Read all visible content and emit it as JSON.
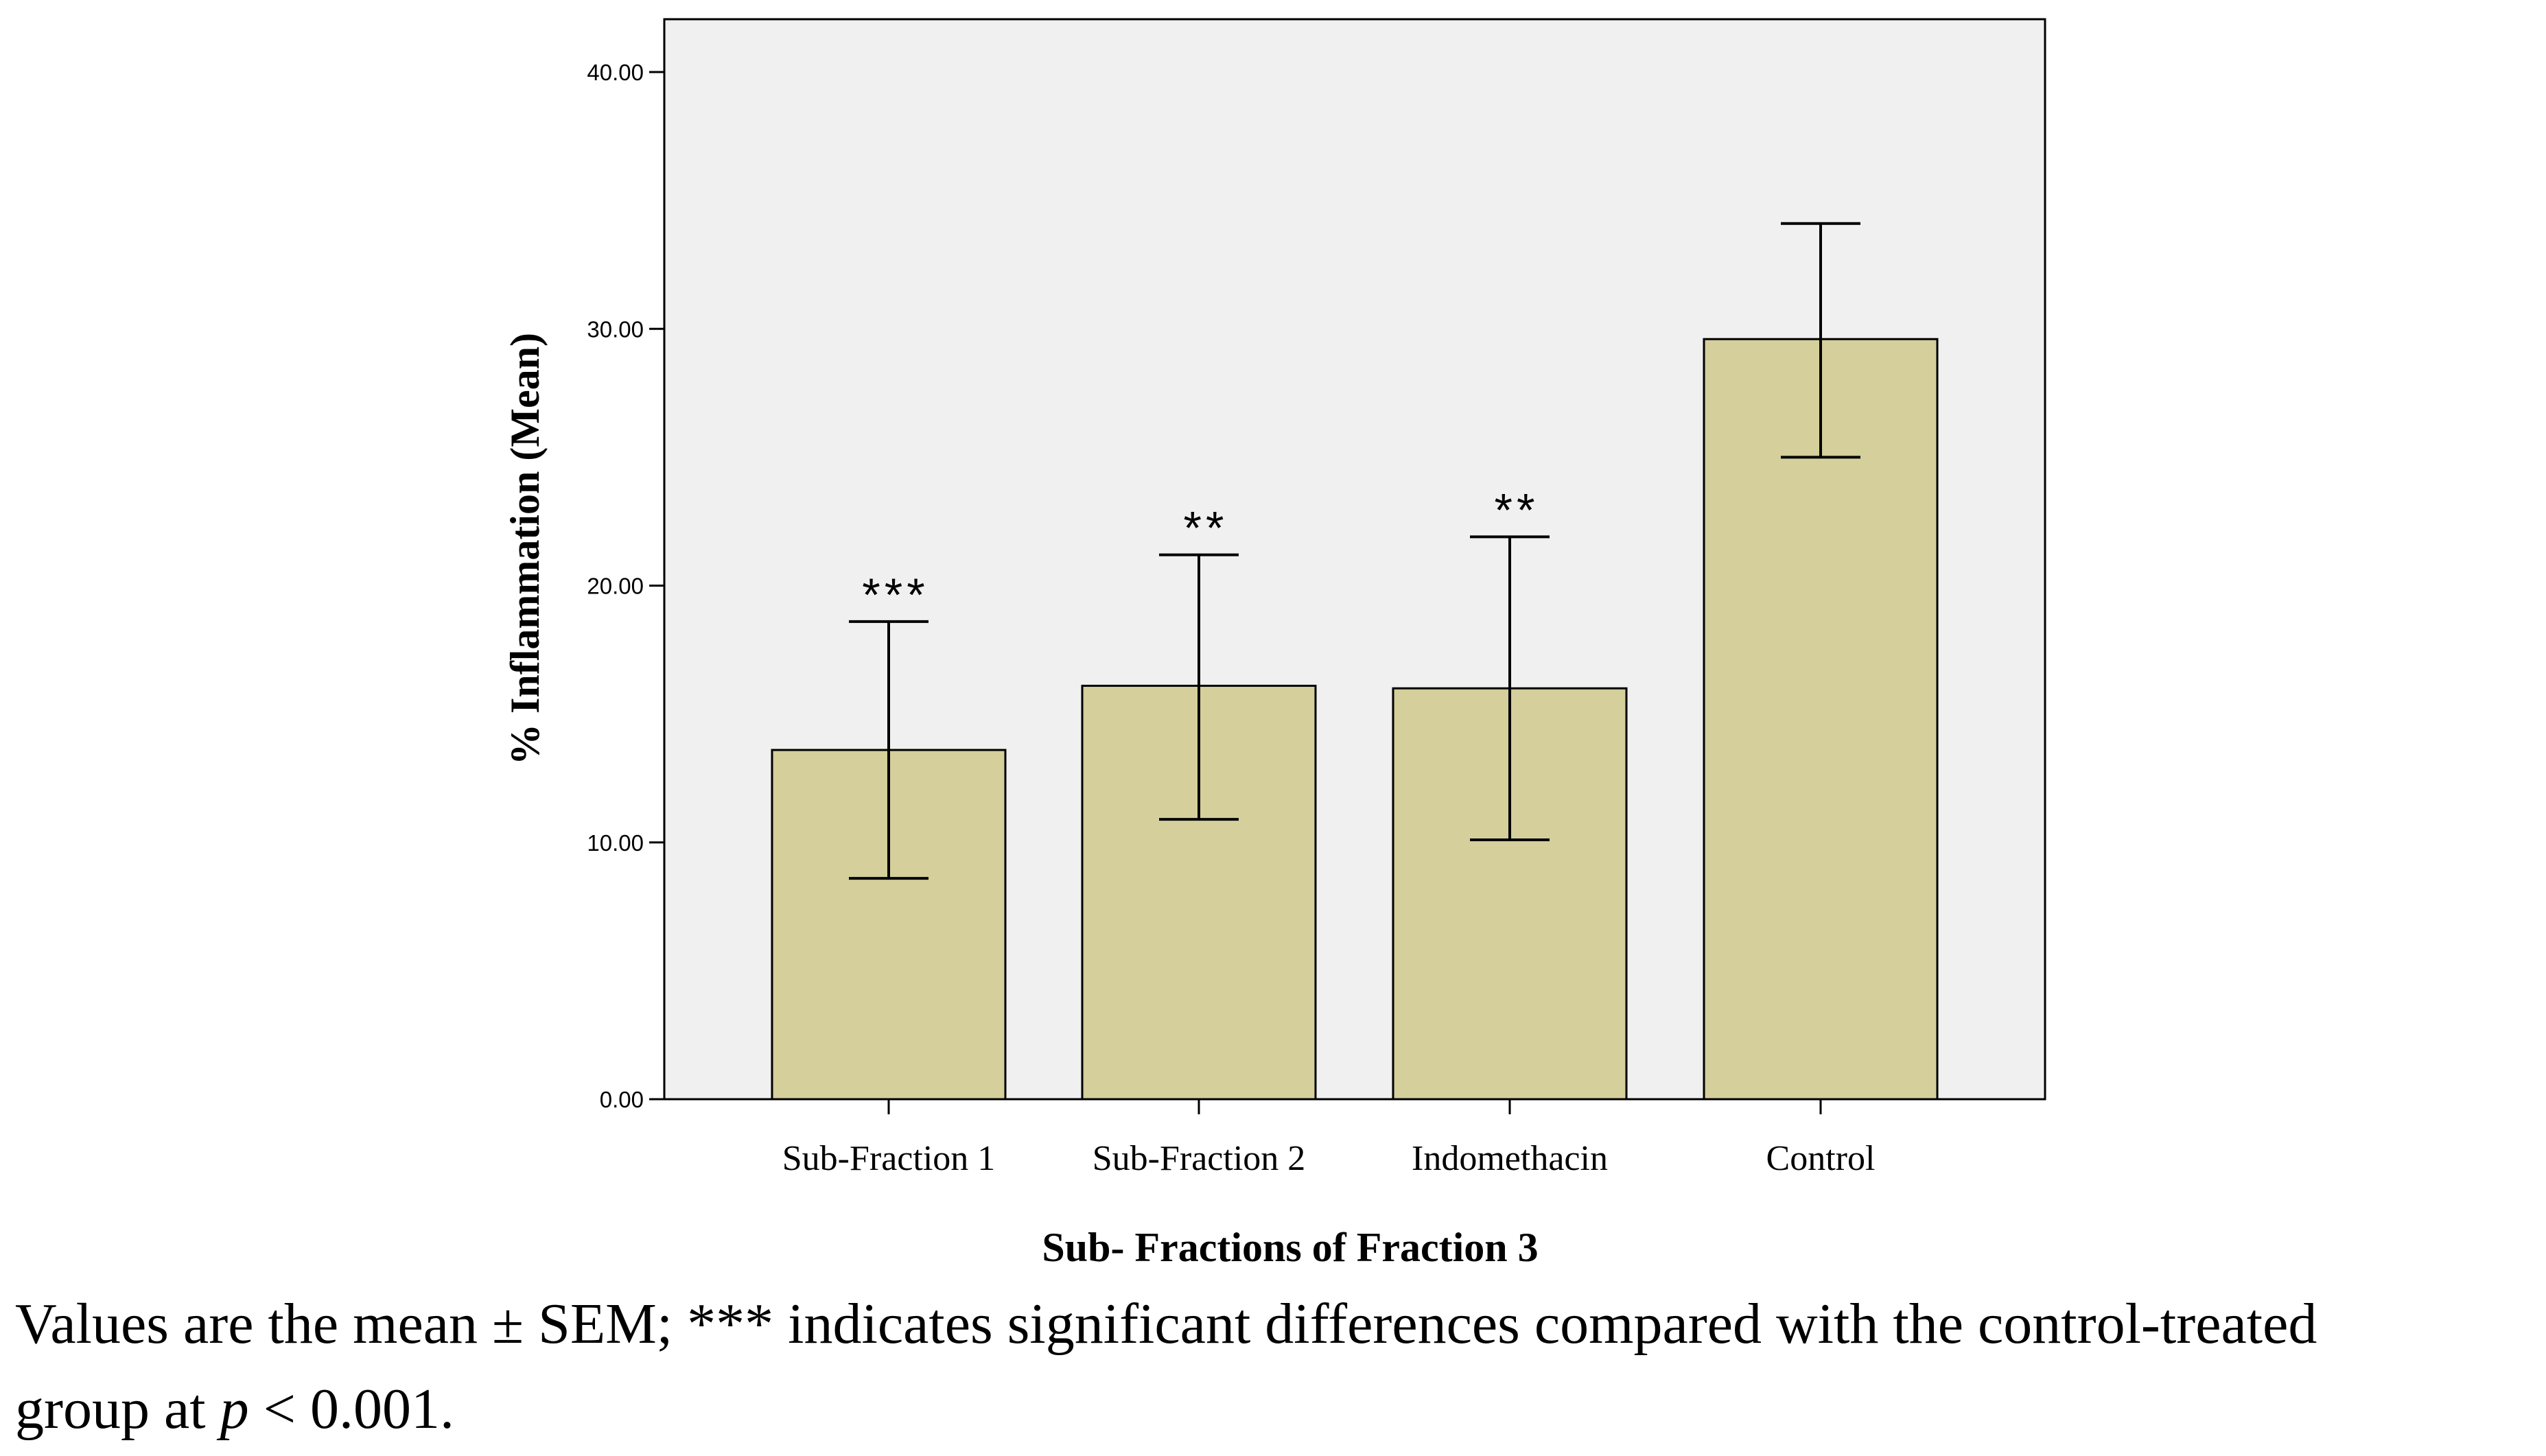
{
  "chart_data": {
    "type": "bar",
    "xlabel": "Sub- Fractions of Fraction 3",
    "ylabel": "% Inflammation (Mean)",
    "ylim": [
      0,
      42
    ],
    "yticks": [
      0,
      10,
      20,
      30,
      40
    ],
    "ytick_labels": [
      "0.00",
      "10.00",
      "20.00",
      "30.00",
      "40.00"
    ],
    "categories": [
      "Sub-Fraction 1",
      "Sub-Fraction 2",
      "Indomethacin",
      "Control"
    ],
    "values": [
      13.6,
      16.1,
      16.0,
      29.6
    ],
    "error_low": [
      8.6,
      10.9,
      10.1,
      25.0
    ],
    "error_high": [
      18.6,
      21.2,
      21.9,
      34.1
    ],
    "significance": [
      "***",
      "**",
      "**",
      ""
    ],
    "colors": {
      "bar_fill": "#d4cf9b",
      "plot_background": "#f0f0f0",
      "stroke": "#000000"
    }
  },
  "caption": {
    "line1": "Values are the mean ± SEM; *** indicates significant differences compared with the control-treated",
    "line2_prefix": "group at ",
    "line2_italic": "p",
    "line2_suffix": " < 0.001."
  }
}
